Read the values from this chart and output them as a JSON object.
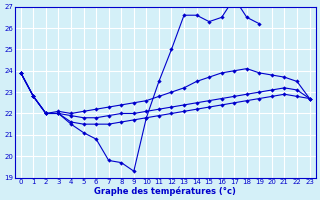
{
  "xlabel": "Graphe des températures (°c)",
  "background_color": "#d4f0f8",
  "grid_color": "#ffffff",
  "line_color": "#0000cc",
  "xlim": [
    -0.5,
    23.5
  ],
  "ylim": [
    19,
    27
  ],
  "yticks": [
    19,
    20,
    21,
    22,
    23,
    24,
    25,
    26,
    27
  ],
  "xticks": [
    0,
    1,
    2,
    3,
    4,
    5,
    6,
    7,
    8,
    9,
    10,
    11,
    12,
    13,
    14,
    15,
    16,
    17,
    18,
    19,
    20,
    21,
    22,
    23
  ],
  "curves": [
    {
      "x": [
        0,
        1,
        2,
        3,
        4,
        5,
        6,
        7,
        8,
        9,
        10,
        11,
        12,
        13,
        14,
        15,
        16,
        17,
        18,
        19,
        20,
        21,
        22,
        23
      ],
      "y": [
        23.9,
        22.8,
        22.0,
        22.0,
        21.5,
        21.1,
        20.8,
        19.8,
        19.7,
        19.3,
        21.8,
        23.5,
        25.0,
        26.6,
        26.6,
        26.3,
        26.5,
        27.4,
        26.5,
        26.2,
        null,
        null,
        null,
        null
      ]
    },
    {
      "x": [
        0,
        1,
        2,
        3,
        4,
        5,
        6,
        7,
        8,
        9,
        10,
        11,
        12,
        13,
        14,
        15,
        16,
        17,
        18,
        19,
        20,
        21,
        22,
        23
      ],
      "y": [
        23.9,
        22.8,
        22.0,
        22.1,
        22.0,
        22.1,
        22.2,
        22.3,
        22.4,
        22.5,
        22.6,
        22.8,
        23.0,
        23.2,
        23.5,
        23.7,
        23.9,
        24.0,
        24.1,
        23.9,
        23.8,
        23.7,
        23.5,
        22.7
      ]
    },
    {
      "x": [
        0,
        1,
        2,
        3,
        4,
        5,
        6,
        7,
        8,
        9,
        10,
        11,
        12,
        13,
        14,
        15,
        16,
        17,
        18,
        19,
        20,
        21,
        22,
        23
      ],
      "y": [
        23.9,
        22.8,
        22.0,
        22.0,
        21.9,
        21.8,
        21.8,
        21.9,
        22.0,
        22.0,
        22.1,
        22.2,
        22.3,
        22.4,
        22.5,
        22.6,
        22.7,
        22.8,
        22.9,
        23.0,
        23.1,
        23.2,
        23.1,
        22.7
      ]
    },
    {
      "x": [
        0,
        1,
        2,
        3,
        4,
        5,
        6,
        7,
        8,
        9,
        10,
        11,
        12,
        13,
        14,
        15,
        16,
        17,
        18,
        19,
        20,
        21,
        22,
        23
      ],
      "y": [
        23.9,
        22.8,
        22.0,
        22.0,
        21.6,
        21.5,
        21.5,
        21.5,
        21.6,
        21.7,
        21.8,
        21.9,
        22.0,
        22.1,
        22.2,
        22.3,
        22.4,
        22.5,
        22.6,
        22.7,
        22.8,
        22.9,
        22.8,
        22.7
      ]
    }
  ]
}
